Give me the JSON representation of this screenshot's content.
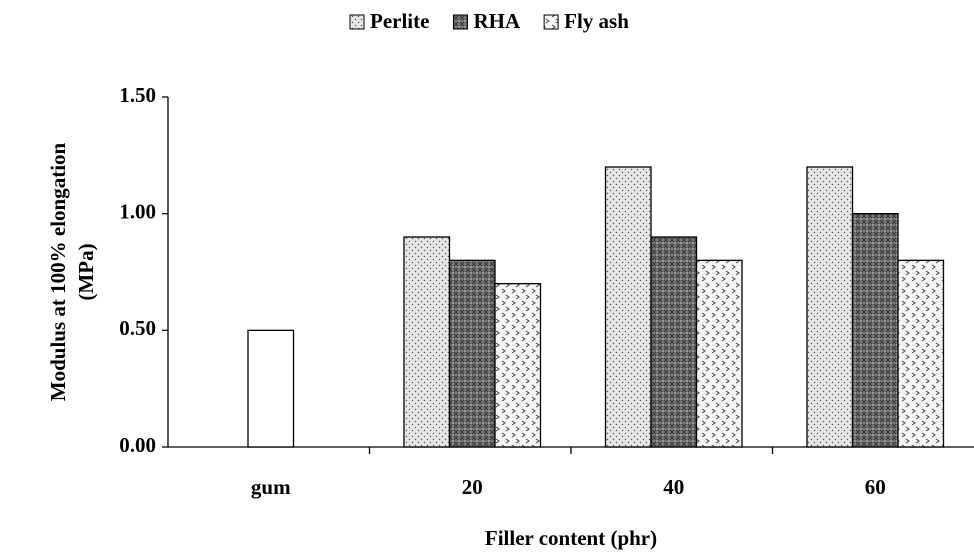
{
  "chart_data": {
    "type": "bar",
    "ylabel": [
      "Modulus at 100% elongation",
      "(MPa)"
    ],
    "xlabel": "Filler content (phr)",
    "categories": [
      "gum",
      "20",
      "40",
      "60"
    ],
    "plain_values": [
      0.5,
      null,
      null,
      null
    ],
    "plain_color": "#ffffff",
    "series": [
      {
        "name": "Perlite",
        "color": "#e6e6e6",
        "values": [
          null,
          0.9,
          1.2,
          1.2
        ]
      },
      {
        "name": "RHA",
        "color": "#7a7a7a",
        "values": [
          null,
          0.8,
          0.9,
          1.0
        ]
      },
      {
        "name": "Fly ash",
        "color": "#f4f4f4",
        "values": [
          null,
          0.7,
          0.8,
          0.8
        ]
      }
    ],
    "ylim": [
      0,
      1.5
    ],
    "yticks": [
      {
        "value": 0,
        "label": "0.00"
      },
      {
        "value": 0.5,
        "label": "0.50"
      },
      {
        "value": 1,
        "label": "1.00"
      },
      {
        "value": 1.5,
        "label": "1.50"
      }
    ],
    "legend": "top"
  }
}
